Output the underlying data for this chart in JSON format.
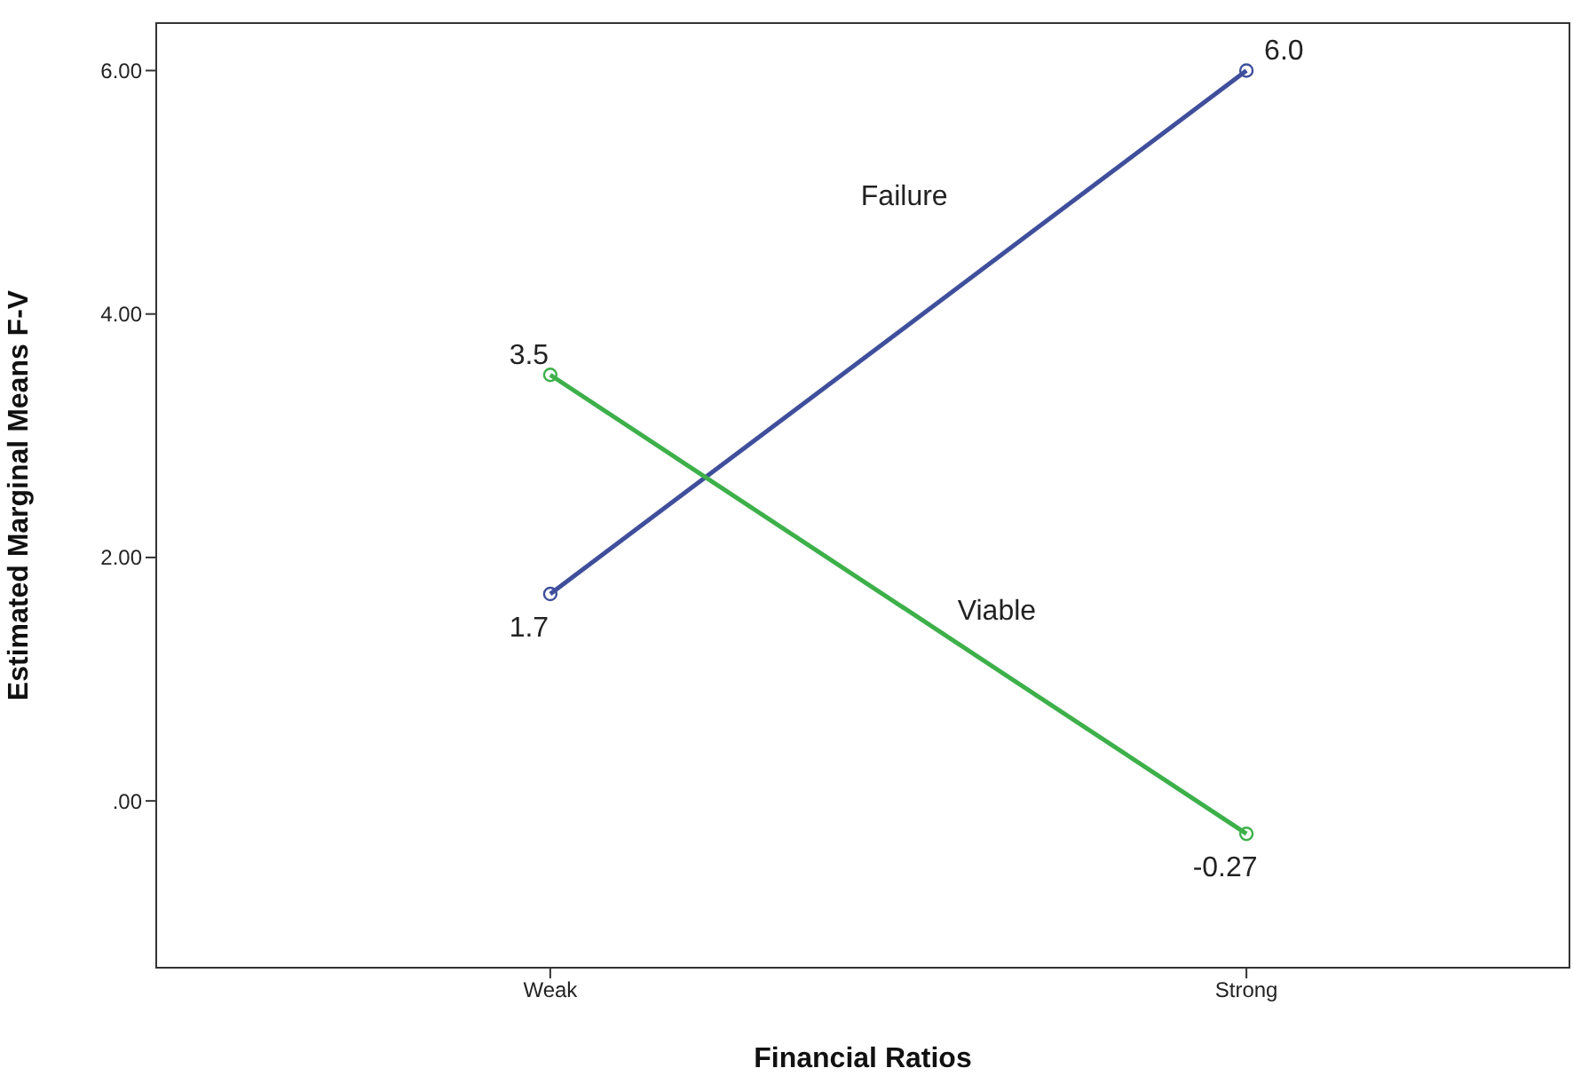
{
  "chart_data": {
    "type": "line",
    "xlabel": "Financial Ratios",
    "ylabel": "Estimated Marginal Means F-V",
    "categories": [
      "Weak",
      "Strong"
    ],
    "series": [
      {
        "name": "Failure",
        "color": "#3f4f9b",
        "values": [
          1.7,
          6.0
        ],
        "value_labels": [
          "1.7",
          "6.0"
        ]
      },
      {
        "name": "Viable",
        "color": "#3db04a",
        "values": [
          3.5,
          -0.27
        ],
        "value_labels": [
          "3.5",
          "-0.27"
        ]
      }
    ],
    "ylim": [
      -1.37,
      6.39
    ],
    "yticks": [
      {
        "value": 0,
        "label": ".00"
      },
      {
        "value": 2,
        "label": "2.00"
      },
      {
        "value": 4,
        "label": "4.00"
      },
      {
        "value": 6,
        "label": "6.00"
      }
    ],
    "grid": false,
    "marker": "circle",
    "line_style": "solid"
  }
}
